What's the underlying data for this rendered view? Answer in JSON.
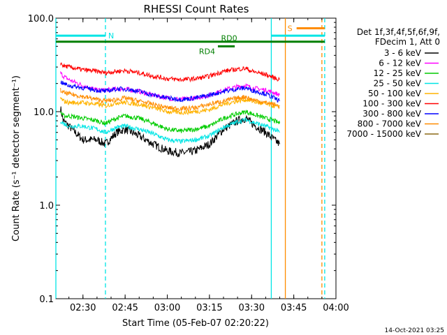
{
  "chart_data": {
    "type": "line",
    "title": "RHESSI Count Rates",
    "xlabel": "Start Time (05-Feb-07 02:20:22)",
    "ylabel": "Count Rate (s⁻¹ detector segment⁻¹)",
    "y_scale": "log",
    "ylim": [
      0.1,
      100
    ],
    "xlim": [
      "02:20:22",
      "04:00"
    ],
    "x_ticks": [
      "02:30",
      "02:45",
      "03:00",
      "03:15",
      "03:30",
      "03:45",
      "04:00"
    ],
    "y_ticks": [
      "0.1",
      "1.0",
      "10.0",
      "100.0"
    ],
    "grid": false,
    "legend_position": "right",
    "legend_header": [
      "Det 1f,3f,4f,5f,6f,9f,",
      "FDecim 1, Att 0"
    ],
    "footer_date": "14-Oct-2021 03:25",
    "series": [
      {
        "name": "3 - 6 keV",
        "color": "#000000",
        "x": [
          "02:22",
          "02:23",
          "02:25",
          "02:30",
          "02:35",
          "02:38",
          "02:42",
          "02:45",
          "02:50",
          "02:55",
          "03:00",
          "03:05",
          "03:10",
          "03:15",
          "03:20",
          "03:25",
          "03:28",
          "03:30",
          "03:35",
          "03:38",
          "03:40"
        ],
        "values": [
          11,
          8,
          7,
          5,
          5,
          4.5,
          6,
          6.5,
          5.5,
          4.5,
          3.8,
          3.6,
          3.8,
          4.5,
          6.5,
          8,
          8.5,
          7.5,
          6,
          5,
          4.5
        ]
      },
      {
        "name": "6 - 12 keV",
        "color": "#ff00ff",
        "x": [
          "02:22",
          "02:23",
          "02:25",
          "02:30",
          "02:35",
          "02:38",
          "02:42",
          "02:45",
          "02:50",
          "02:55",
          "03:00",
          "03:05",
          "03:10",
          "03:15",
          "03:20",
          "03:25",
          "03:28",
          "03:30",
          "03:35",
          "03:38",
          "03:40"
        ],
        "values": [
          26,
          24,
          22,
          19,
          17,
          17,
          17.5,
          17.5,
          16.5,
          15,
          14,
          13.5,
          14,
          15,
          17,
          18.5,
          19,
          18,
          17,
          16,
          15
        ]
      },
      {
        "name": "12 - 25 keV",
        "color": "#00cc00",
        "x": [
          "02:22",
          "02:23",
          "02:25",
          "02:30",
          "02:35",
          "02:38",
          "02:42",
          "02:45",
          "02:50",
          "02:55",
          "03:00",
          "03:05",
          "03:10",
          "03:15",
          "03:20",
          "03:25",
          "03:28",
          "03:30",
          "03:35",
          "03:38",
          "03:40"
        ],
        "values": [
          10,
          9,
          9,
          8.5,
          8,
          7.5,
          8.5,
          9,
          8.5,
          7.5,
          6.5,
          6.2,
          6.5,
          7,
          8.5,
          9.5,
          10,
          9.5,
          8.5,
          8,
          7.5
        ]
      },
      {
        "name": "25 - 50 keV",
        "color": "#00e5e5",
        "x": [
          "02:22",
          "02:23",
          "02:25",
          "02:30",
          "02:35",
          "02:38",
          "02:42",
          "02:45",
          "02:50",
          "02:55",
          "03:00",
          "03:05",
          "03:10",
          "03:15",
          "03:20",
          "03:25",
          "03:28",
          "03:30",
          "03:35",
          "03:38",
          "03:40"
        ],
        "values": [
          8,
          7.5,
          7,
          7,
          6.5,
          6,
          6.8,
          7,
          6.5,
          5.8,
          5,
          4.8,
          5,
          5.5,
          6.8,
          7.8,
          8.2,
          7.8,
          7,
          6.5,
          6
        ]
      },
      {
        "name": "50 - 100 keV",
        "color": "#ffb300",
        "x": [
          "02:22",
          "02:23",
          "02:25",
          "02:30",
          "02:35",
          "02:38",
          "02:42",
          "02:45",
          "02:50",
          "02:55",
          "03:00",
          "03:05",
          "03:10",
          "03:15",
          "03:20",
          "03:25",
          "03:28",
          "03:30",
          "03:35",
          "03:38",
          "03:40"
        ],
        "values": [
          14,
          13,
          12.5,
          12.5,
          12,
          11.5,
          12.5,
          12.5,
          12,
          11,
          10,
          9.8,
          10,
          10.5,
          12,
          13,
          13.5,
          13,
          12,
          11.5,
          11
        ]
      },
      {
        "name": "100 - 300 keV",
        "color": "#ff0000",
        "x": [
          "02:22",
          "02:23",
          "02:25",
          "02:30",
          "02:35",
          "02:38",
          "02:42",
          "02:45",
          "02:50",
          "02:55",
          "03:00",
          "03:05",
          "03:10",
          "03:15",
          "03:20",
          "03:25",
          "03:28",
          "03:30",
          "03:35",
          "03:38",
          "03:40"
        ],
        "values": [
          33,
          31,
          30,
          28,
          27,
          26,
          27,
          27.5,
          26,
          24,
          22.5,
          22,
          22.5,
          24,
          27,
          28.5,
          29,
          27,
          25,
          23,
          22
        ]
      },
      {
        "name": "300 - 800 keV",
        "color": "#0000ff",
        "x": [
          "02:22",
          "02:23",
          "02:25",
          "02:30",
          "02:35",
          "02:38",
          "02:42",
          "02:45",
          "02:50",
          "02:55",
          "03:00",
          "03:05",
          "03:10",
          "03:15",
          "03:20",
          "03:25",
          "03:28",
          "03:30",
          "03:35",
          "03:38",
          "03:40"
        ],
        "values": [
          21,
          20,
          19,
          18,
          17,
          16.5,
          17.5,
          17.5,
          16.5,
          15,
          14,
          13.5,
          14,
          15,
          16.5,
          17.5,
          18,
          17,
          15.5,
          14,
          13
        ]
      },
      {
        "name": "800 - 7000 keV",
        "color": "#ff8c00",
        "x": [
          "02:22",
          "02:23",
          "02:25",
          "02:30",
          "02:35",
          "02:38",
          "02:42",
          "02:45",
          "02:50",
          "02:55",
          "03:00",
          "03:05",
          "03:10",
          "03:15",
          "03:20",
          "03:25",
          "03:28",
          "03:30",
          "03:35",
          "03:38",
          "03:40"
        ],
        "values": [
          17,
          16,
          15.5,
          14.5,
          13.5,
          13,
          13.5,
          14,
          13,
          12,
          11,
          10.8,
          11,
          12,
          13,
          14,
          14.5,
          13.5,
          12.5,
          12,
          11.5
        ]
      },
      {
        "name": "7000 - 15000 keV",
        "color": "#8b6914",
        "x": [],
        "values": []
      }
    ],
    "annotations": {
      "horizontal_bars": [
        {
          "label": "N",
          "color": "#00e5e5",
          "x": [
            "02:20:22",
            "02:38"
          ],
          "y": 65
        },
        {
          "label": "",
          "color": "#00e5e5",
          "x": [
            "03:37",
            "03:56"
          ],
          "y": 65
        },
        {
          "label": "S",
          "color": "#ff8c00",
          "x": [
            "03:46",
            "03:56"
          ],
          "y": 78
        },
        {
          "label": "RD0",
          "color": "#007f00",
          "x": [
            "02:20:22",
            "03:56"
          ],
          "y": 56
        },
        {
          "label": "RD4",
          "color": "#007f00",
          "x": [
            "03:18",
            "03:24"
          ],
          "y": 50
        }
      ],
      "vertical_lines": [
        {
          "x": "02:20:22",
          "color": "#00e5e5",
          "style": "solid"
        },
        {
          "x": "02:38",
          "color": "#00e5e5",
          "style": "dashed"
        },
        {
          "x": "03:37",
          "color": "#00e5e5",
          "style": "solid"
        },
        {
          "x": "03:42",
          "color": "#ff8c00",
          "style": "solid"
        },
        {
          "x": "03:55",
          "color": "#ff8c00",
          "style": "dashed"
        },
        {
          "x": "03:56",
          "color": "#00e5e5",
          "style": "dashed"
        }
      ]
    }
  }
}
